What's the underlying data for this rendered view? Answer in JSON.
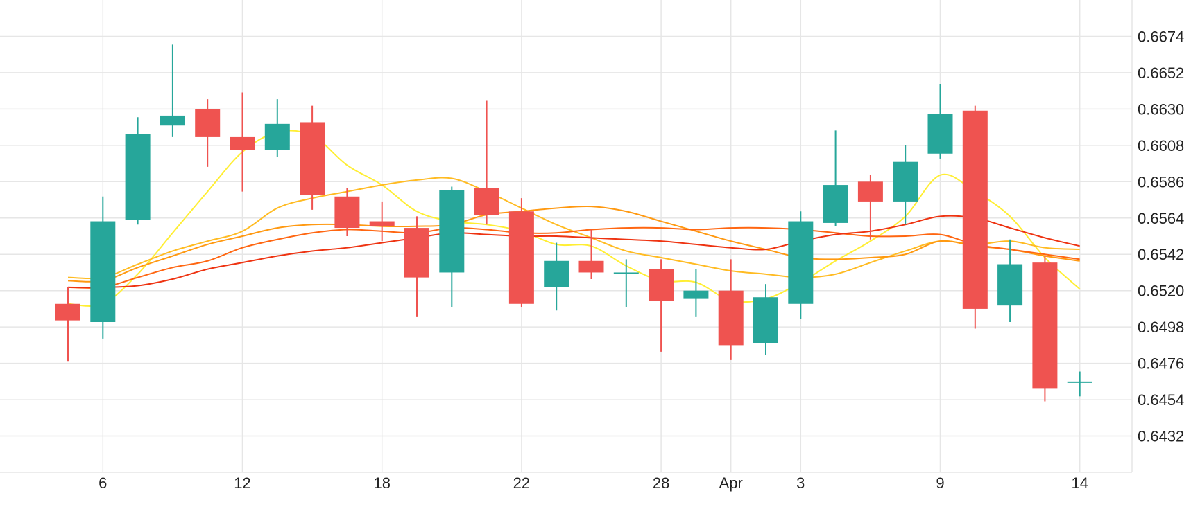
{
  "chart_data": {
    "type": "candlestick",
    "x_ticks": [
      {
        "i": 1,
        "label": "6"
      },
      {
        "i": 5,
        "label": "12"
      },
      {
        "i": 9,
        "label": "18"
      },
      {
        "i": 13,
        "label": "22"
      },
      {
        "i": 17,
        "label": "28"
      },
      {
        "i": 19,
        "label": "Apr"
      },
      {
        "i": 21,
        "label": "3"
      },
      {
        "i": 25,
        "label": "9"
      },
      {
        "i": 29,
        "label": "14"
      }
    ],
    "y_ticks": [
      "0.6674",
      "0.6652",
      "0.6630",
      "0.6608",
      "0.6586",
      "0.6564",
      "0.6542",
      "0.6520",
      "0.6498",
      "0.6476",
      "0.6454",
      "0.6432"
    ],
    "ylim": [
      0.641,
      0.6696
    ],
    "grid": true,
    "colors": {
      "up": "#26a69a",
      "down": "#ef5350",
      "grid": "#e6e6e6"
    },
    "candles": [
      {
        "o": 0.6512,
        "h": 0.6522,
        "l": 0.6477,
        "c": 0.6502
      },
      {
        "o": 0.6501,
        "h": 0.6577,
        "l": 0.6491,
        "c": 0.6562
      },
      {
        "o": 0.6563,
        "h": 0.6625,
        "l": 0.656,
        "c": 0.6615
      },
      {
        "o": 0.662,
        "h": 0.6669,
        "l": 0.6613,
        "c": 0.6626
      },
      {
        "o": 0.663,
        "h": 0.6636,
        "l": 0.6595,
        "c": 0.6613
      },
      {
        "o": 0.6613,
        "h": 0.664,
        "l": 0.658,
        "c": 0.6605
      },
      {
        "o": 0.6605,
        "h": 0.6636,
        "l": 0.6601,
        "c": 0.6621
      },
      {
        "o": 0.6622,
        "h": 0.6632,
        "l": 0.6569,
        "c": 0.6578
      },
      {
        "o": 0.6577,
        "h": 0.6582,
        "l": 0.6553,
        "c": 0.6558
      },
      {
        "o": 0.6562,
        "h": 0.6574,
        "l": 0.655,
        "c": 0.6559
      },
      {
        "o": 0.6558,
        "h": 0.6565,
        "l": 0.6504,
        "c": 0.6528
      },
      {
        "o": 0.6531,
        "h": 0.6583,
        "l": 0.651,
        "c": 0.6581
      },
      {
        "o": 0.6582,
        "h": 0.6635,
        "l": 0.656,
        "c": 0.6566
      },
      {
        "o": 0.6568,
        "h": 0.6576,
        "l": 0.651,
        "c": 0.6512
      },
      {
        "o": 0.6522,
        "h": 0.6549,
        "l": 0.6508,
        "c": 0.6538
      },
      {
        "o": 0.6538,
        "h": 0.6557,
        "l": 0.6527,
        "c": 0.6531
      },
      {
        "o": 0.6531,
        "h": 0.6539,
        "l": 0.651,
        "c": 0.6531
      },
      {
        "o": 0.6533,
        "h": 0.6539,
        "l": 0.6483,
        "c": 0.6514
      },
      {
        "o": 0.6515,
        "h": 0.6533,
        "l": 0.6504,
        "c": 0.652
      },
      {
        "o": 0.652,
        "h": 0.6539,
        "l": 0.6478,
        "c": 0.6487
      },
      {
        "o": 0.6488,
        "h": 0.6524,
        "l": 0.6481,
        "c": 0.6516
      },
      {
        "o": 0.6512,
        "h": 0.6568,
        "l": 0.6503,
        "c": 0.6562
      },
      {
        "o": 0.6561,
        "h": 0.6617,
        "l": 0.6559,
        "c": 0.6584
      },
      {
        "o": 0.6586,
        "h": 0.659,
        "l": 0.6551,
        "c": 0.6574
      },
      {
        "o": 0.6574,
        "h": 0.6608,
        "l": 0.656,
        "c": 0.6598
      },
      {
        "o": 0.6603,
        "h": 0.6645,
        "l": 0.66,
        "c": 0.6627
      },
      {
        "o": 0.6629,
        "h": 0.6632,
        "l": 0.6497,
        "c": 0.6509
      },
      {
        "o": 0.6511,
        "h": 0.6551,
        "l": 0.6501,
        "c": 0.6536
      },
      {
        "o": 0.6537,
        "h": 0.6541,
        "l": 0.6453,
        "c": 0.6461
      },
      {
        "o": 0.6465,
        "h": 0.6471,
        "l": 0.6456,
        "c": 0.6465
      }
    ],
    "moving_averages": [
      {
        "color": "#ffee33",
        "values": [
          0.6512,
          0.6512,
          0.653,
          0.6555,
          0.658,
          0.6604,
          0.6616,
          0.6614,
          0.6596,
          0.6584,
          0.6568,
          0.6562,
          0.656,
          0.6556,
          0.6548,
          0.6547,
          0.6535,
          0.6526,
          0.6525,
          0.6514,
          0.6515,
          0.6525,
          0.6538,
          0.655,
          0.6565,
          0.659,
          0.658,
          0.6565,
          0.654,
          0.6521
        ]
      },
      {
        "color": "#ffbb22",
        "values": [
          0.6528,
          0.6528,
          0.6536,
          0.6544,
          0.655,
          0.6556,
          0.657,
          0.6576,
          0.658,
          0.6584,
          0.6587,
          0.6588,
          0.658,
          0.657,
          0.656,
          0.6552,
          0.6544,
          0.654,
          0.6536,
          0.6532,
          0.653,
          0.6528,
          0.653,
          0.6537,
          0.6544,
          0.655,
          0.6548,
          0.655,
          0.6546,
          0.6545
        ]
      },
      {
        "color": "#ff9911",
        "values": [
          0.6526,
          0.6526,
          0.6534,
          0.6541,
          0.6548,
          0.6553,
          0.6558,
          0.656,
          0.656,
          0.6559,
          0.6559,
          0.656,
          0.6566,
          0.6568,
          0.657,
          0.6571,
          0.6568,
          0.6562,
          0.6556,
          0.655,
          0.6545,
          0.654,
          0.6539,
          0.654,
          0.6542,
          0.655,
          0.6547,
          0.6545,
          0.6541,
          0.6538
        ]
      },
      {
        "color": "#ff6611",
        "values": [
          0.6522,
          0.6522,
          0.6528,
          0.6534,
          0.6538,
          0.6546,
          0.6551,
          0.6555,
          0.6557,
          0.6556,
          0.6555,
          0.6558,
          0.6557,
          0.6555,
          0.6555,
          0.6557,
          0.6558,
          0.6558,
          0.6557,
          0.6558,
          0.6558,
          0.6557,
          0.6555,
          0.6553,
          0.6553,
          0.6554,
          0.6548,
          0.6545,
          0.6542,
          0.6539
        ]
      },
      {
        "color": "#ee3311",
        "values": [
          0.6522,
          0.6522,
          0.6523,
          0.6527,
          0.6533,
          0.6537,
          0.6541,
          0.6544,
          0.6546,
          0.6549,
          0.6552,
          0.6555,
          0.6554,
          0.6553,
          0.6553,
          0.6552,
          0.6551,
          0.655,
          0.6548,
          0.6546,
          0.6545,
          0.655,
          0.6554,
          0.6556,
          0.656,
          0.6565,
          0.6564,
          0.6558,
          0.6552,
          0.6547
        ]
      }
    ]
  }
}
